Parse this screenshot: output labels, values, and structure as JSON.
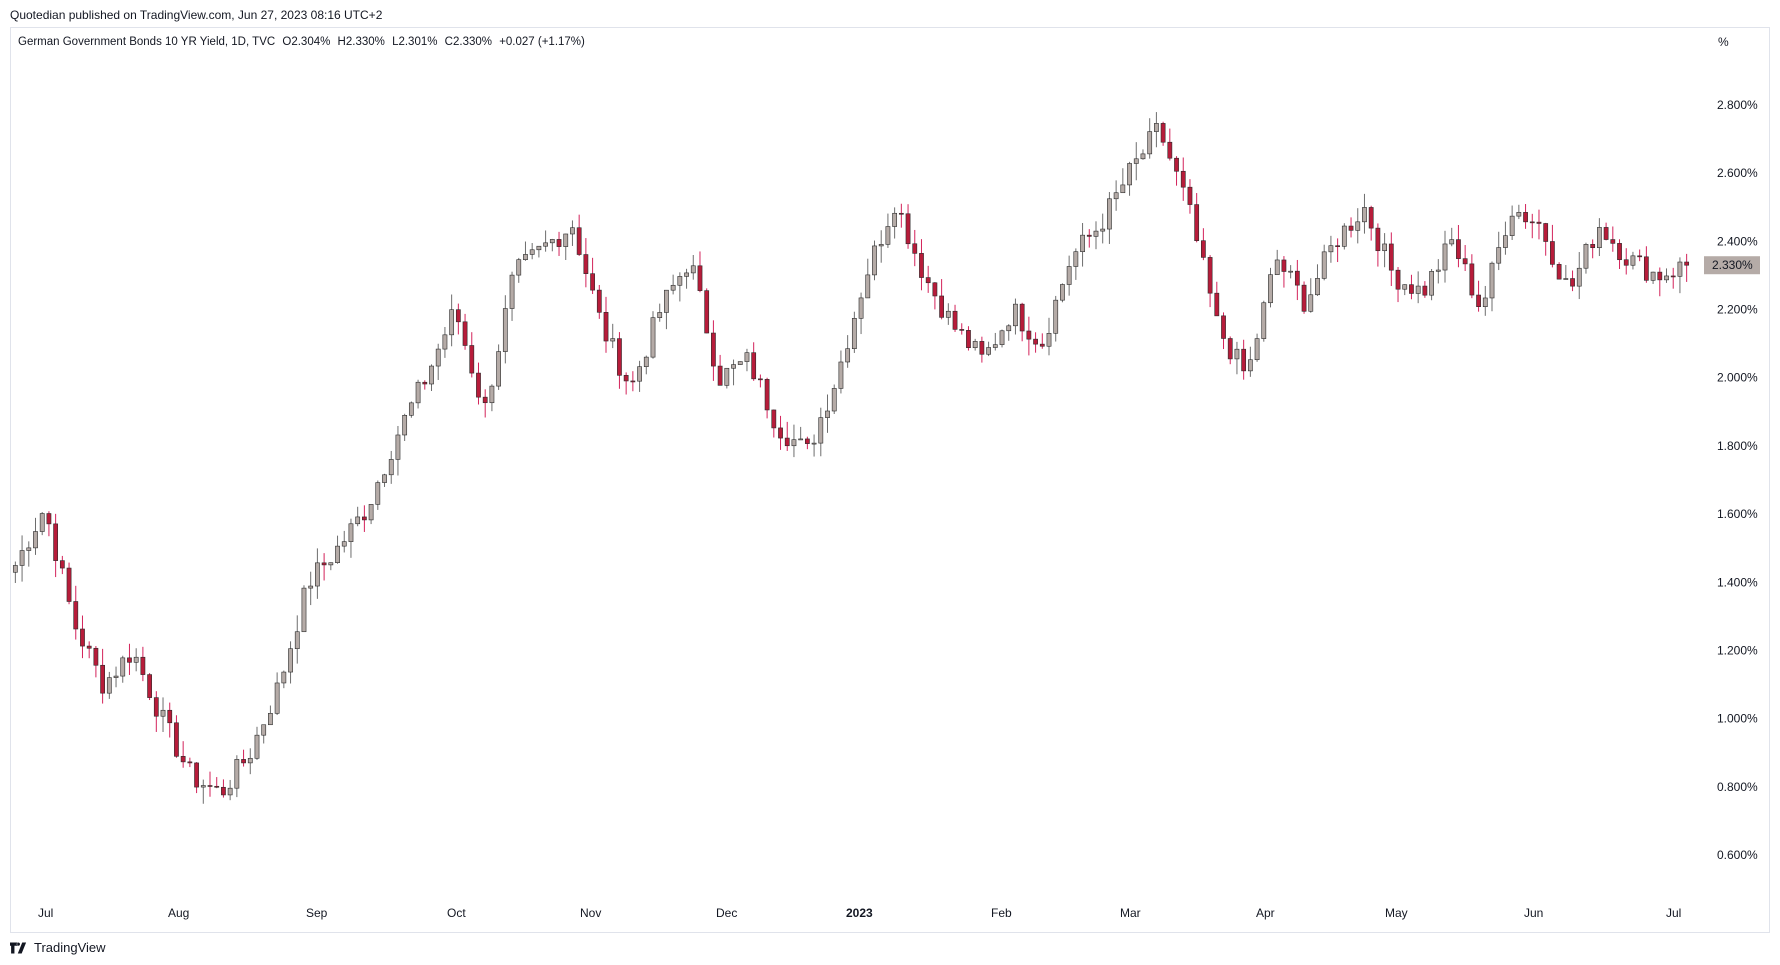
{
  "header": {
    "published": "Quotedian published on TradingView.com, Jun 27, 2023 08:16 UTC+2"
  },
  "legend": {
    "symbol": "German Government Bonds 10 YR Yield, 1D, TVC",
    "open": "O2.304%",
    "high": "H2.330%",
    "low": "L2.301%",
    "close": "C2.330%",
    "change": "+0.027 (+1.17%)"
  },
  "footer": {
    "brand": "TradingView"
  },
  "colors": {
    "up_body": "#b5aba7",
    "down_body": "#b71c3a",
    "wick_down": "#d3225a",
    "wick_up": "#6d6d6d",
    "last_badge": "#b5aba7"
  },
  "chart_data": {
    "type": "candlestick",
    "unit_label": "%",
    "ylim": [
      0.5,
      2.9
    ],
    "y_ticks": [
      "2.800%",
      "2.600%",
      "2.400%",
      "2.200%",
      "2.000%",
      "1.800%",
      "1.600%",
      "1.400%",
      "1.200%",
      "1.000%",
      "0.800%",
      "0.600%"
    ],
    "x_ticks": [
      {
        "label": "Jul",
        "bold": false
      },
      {
        "label": "Aug",
        "bold": false
      },
      {
        "label": "Sep",
        "bold": false
      },
      {
        "label": "Oct",
        "bold": false
      },
      {
        "label": "Nov",
        "bold": false
      },
      {
        "label": "Dec",
        "bold": false
      },
      {
        "label": "2023",
        "bold": true
      },
      {
        "label": "Feb",
        "bold": false
      },
      {
        "label": "Mar",
        "bold": false
      },
      {
        "label": "Apr",
        "bold": false
      },
      {
        "label": "May",
        "bold": false
      },
      {
        "label": "Jun",
        "bold": false
      },
      {
        "label": "Jul",
        "bold": false
      }
    ],
    "last_value_label": "2.330%",
    "last_value": 2.33,
    "key_closes": [
      1.45,
      1.62,
      1.28,
      1.1,
      1.2,
      1.0,
      0.83,
      0.78,
      0.9,
      1.1,
      1.4,
      1.5,
      1.62,
      1.83,
      2.0,
      2.2,
      1.9,
      2.3,
      2.38,
      2.45,
      2.15,
      1.97,
      2.2,
      2.35,
      2.0,
      2.05,
      1.86,
      1.78,
      2.0,
      2.3,
      2.52,
      2.3,
      2.15,
      2.05,
      2.2,
      2.1,
      2.35,
      2.45,
      2.6,
      2.73,
      2.5,
      2.15,
      2.0,
      2.35,
      2.22,
      2.4,
      2.5,
      2.3,
      2.25,
      2.4,
      2.2,
      2.5,
      2.45,
      2.25,
      2.45,
      2.35,
      2.3,
      2.33
    ],
    "session_count": 250
  }
}
